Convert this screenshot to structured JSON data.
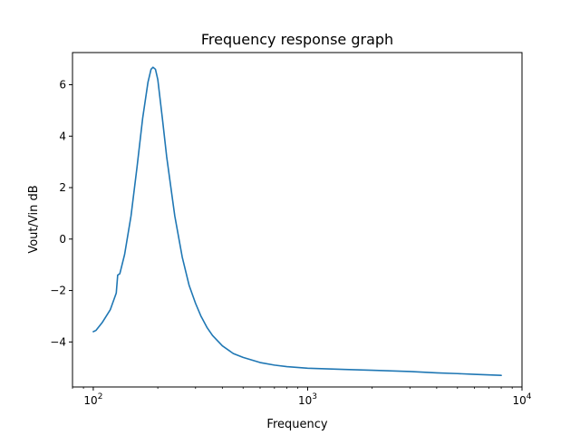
{
  "chart_data": {
    "type": "line",
    "title": "Frequency response graph",
    "xlabel": "Frequency",
    "ylabel": "Vout/Vin dB",
    "x_scale": "log",
    "xlim": [
      80,
      10000
    ],
    "ylim": [
      -5.75,
      7.25
    ],
    "grid": false,
    "x_ticks": [
      {
        "value": 100,
        "base": "10",
        "exp": "2"
      },
      {
        "value": 1000,
        "base": "10",
        "exp": "3"
      },
      {
        "value": 10000,
        "base": "10",
        "exp": "4"
      }
    ],
    "y_ticks": [
      {
        "value": -4,
        "label": "−4"
      },
      {
        "value": -2,
        "label": "−2"
      },
      {
        "value": 0,
        "label": "0"
      },
      {
        "value": 2,
        "label": "2"
      },
      {
        "value": 4,
        "label": "4"
      },
      {
        "value": 6,
        "label": "6"
      }
    ],
    "series": [
      {
        "color": "#1f77b4",
        "x": [
          100,
          103,
          110,
          120,
          128,
          130,
          133,
          140,
          150,
          160,
          170,
          180,
          186,
          190,
          195,
          200,
          210,
          220,
          240,
          260,
          280,
          300,
          318,
          322,
          340,
          360,
          400,
          450,
          500,
          600,
          700,
          800,
          1000,
          1500,
          2000,
          3000,
          4000,
          5000,
          6000,
          8000
        ],
        "y": [
          -3.6,
          -3.55,
          -3.25,
          -2.75,
          -2.1,
          -1.4,
          -1.35,
          -0.6,
          0.9,
          2.8,
          4.7,
          6.1,
          6.6,
          6.68,
          6.6,
          6.2,
          4.7,
          3.2,
          0.9,
          -0.7,
          -1.8,
          -2.5,
          -3.0,
          -3.08,
          -3.45,
          -3.75,
          -4.15,
          -4.45,
          -4.6,
          -4.8,
          -4.9,
          -4.96,
          -5.02,
          -5.07,
          -5.1,
          -5.15,
          -5.2,
          -5.23,
          -5.26,
          -5.3
        ]
      }
    ]
  }
}
